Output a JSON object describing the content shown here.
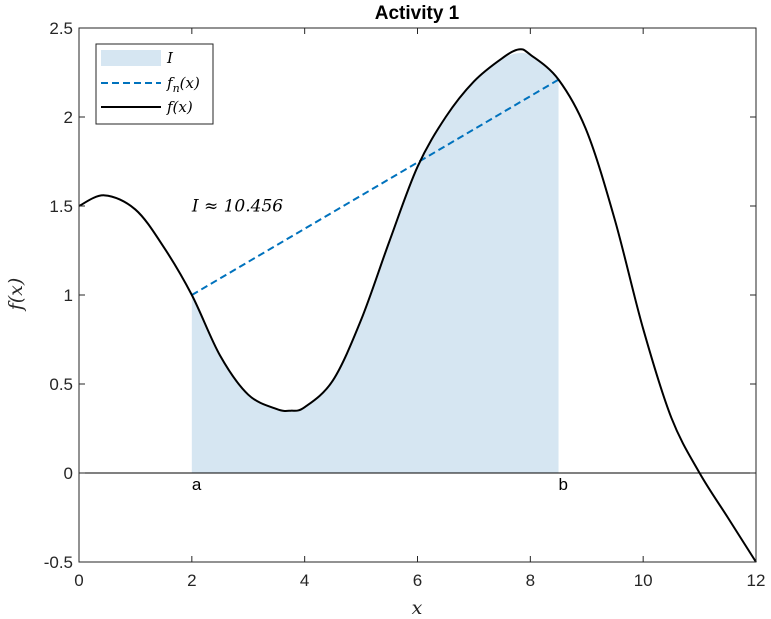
{
  "chart_data": {
    "type": "line",
    "title": "Activity 1",
    "xlabel": "x",
    "ylabel": "f(x)",
    "xlim": [
      0,
      12
    ],
    "ylim": [
      -0.5,
      2.5
    ],
    "xticks": [
      0,
      2,
      4,
      6,
      8,
      10,
      12
    ],
    "yticks": [
      -0.5,
      0,
      0.5,
      1,
      1.5,
      2,
      2.5
    ],
    "xtick_labels": [
      "0",
      "2",
      "4",
      "6",
      "8",
      "10",
      "12"
    ],
    "ytick_labels": [
      "-0.5",
      "0",
      "0.5",
      "1",
      "1.5",
      "2",
      "2.5"
    ],
    "grid": false,
    "legend_position": "top-left",
    "series": [
      {
        "name": "I",
        "kind": "area",
        "color": "#d6e6f2",
        "x": [
          2.0,
          2.5,
          3.0,
          3.5,
          3.75,
          4.0,
          4.5,
          5.0,
          5.5,
          6.0,
          6.5,
          7.0,
          7.5,
          8.0,
          8.5
        ],
        "y": [
          1.0,
          0.66,
          0.44,
          0.36,
          0.35,
          0.37,
          0.52,
          0.86,
          1.3,
          1.72,
          2.0,
          2.2,
          2.33,
          2.35,
          2.21
        ]
      },
      {
        "name": "f_n(x)",
        "kind": "line",
        "style": "dashed",
        "color": "#0072bd",
        "x": [
          2.0,
          8.5
        ],
        "y": [
          1.0,
          2.21
        ]
      },
      {
        "name": "f(x)",
        "kind": "line",
        "style": "solid",
        "color": "#000000",
        "x": [
          0.0,
          0.45,
          1.0,
          1.5,
          2.0,
          2.5,
          3.0,
          3.5,
          3.75,
          4.0,
          4.5,
          5.0,
          5.5,
          6.0,
          6.5,
          7.0,
          7.5,
          7.8,
          8.0,
          8.5,
          9.0,
          9.5,
          10.0,
          10.5,
          11.0,
          11.5,
          12.0
        ],
        "y": [
          1.5,
          1.56,
          1.48,
          1.27,
          1.0,
          0.66,
          0.44,
          0.36,
          0.35,
          0.37,
          0.52,
          0.86,
          1.3,
          1.72,
          2.0,
          2.2,
          2.33,
          2.38,
          2.35,
          2.21,
          1.92,
          1.42,
          0.81,
          0.31,
          0.0,
          -0.25,
          -0.5
        ]
      }
    ],
    "legend": {
      "area_label": "I",
      "dashed_label_main": "f",
      "dashed_label_sub": "n",
      "dashed_label_tail": "(x)",
      "solid_label": "f(x)"
    },
    "annotations": {
      "integral_text": "I ≈ 10.456",
      "integral_x": 2.0,
      "integral_y": 1.47,
      "a_label": "a",
      "a_x": 2.0,
      "b_label": "b",
      "b_x": 8.5
    },
    "colors": {
      "fill": "#d6e6f2",
      "dashed": "#0072bd",
      "curve": "#000000",
      "axis": "#262626"
    }
  }
}
